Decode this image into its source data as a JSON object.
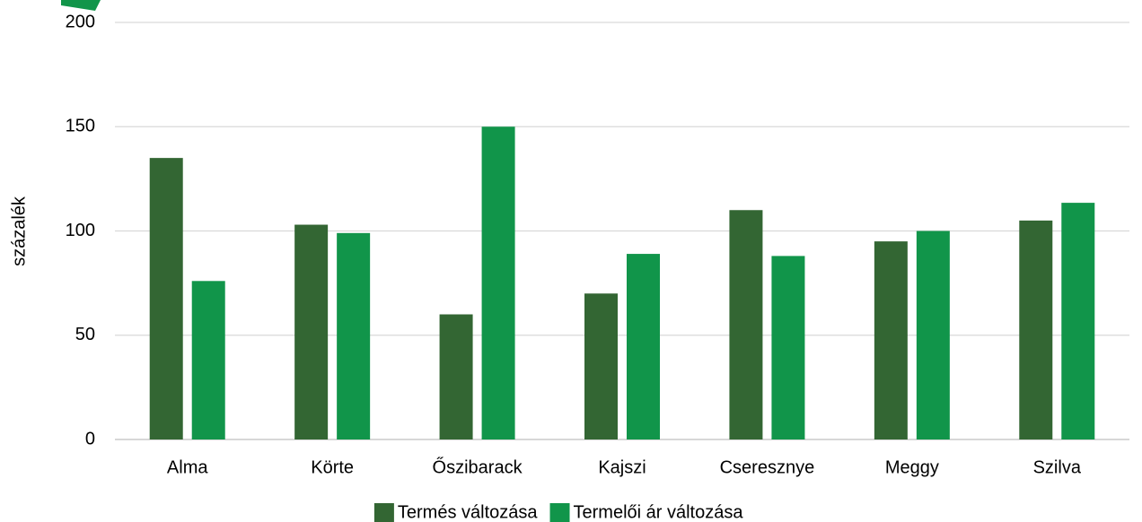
{
  "chart_data": {
    "type": "bar",
    "y_label": "százalék",
    "categories": [
      "Alma",
      "Körte",
      "Őszibarack",
      "Kajszi",
      "Cseresznye",
      "Meggy",
      "Szilva"
    ],
    "series": [
      {
        "name": "Termés változása",
        "color": "#336633",
        "values": [
          135,
          103,
          60,
          70,
          110,
          95,
          105
        ]
      },
      {
        "name": "Termelői ár változása",
        "color": "#11954a",
        "values": [
          76,
          99,
          150,
          89,
          88,
          100,
          113.5
        ]
      }
    ],
    "ylim": [
      0,
      200
    ],
    "yticks": [
      0,
      50,
      100,
      150,
      200
    ],
    "grid": true,
    "legend": "bottom"
  }
}
